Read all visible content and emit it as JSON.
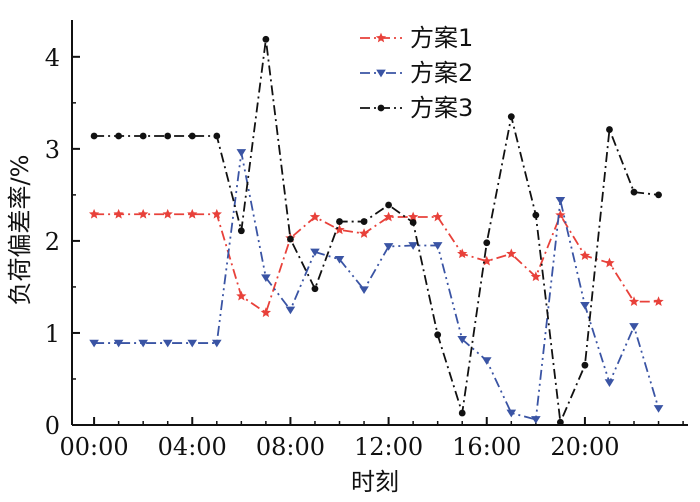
{
  "chart_data": {
    "type": "line",
    "x": [
      0,
      1,
      2,
      3,
      4,
      5,
      6,
      7,
      8,
      9,
      10,
      11,
      12,
      13,
      14,
      15,
      16,
      17,
      18,
      19,
      20,
      21,
      22,
      23
    ],
    "xticks": [
      "00:00",
      "04:00",
      "08:00",
      "12:00",
      "16:00",
      "20:00"
    ],
    "xlabel": "时刻",
    "ylabel": "负荷偏差率/%",
    "yticks": [
      "0",
      "1",
      "2",
      "3",
      "4"
    ],
    "ylim": [
      0,
      4.4
    ],
    "xlim": [
      -0.9,
      24.2
    ],
    "grid": false,
    "legend_position": "top-center",
    "series": [
      {
        "name": "方案1",
        "color": "#e8413a",
        "dash": "dash-dot",
        "marker": "star",
        "values": [
          2.29,
          2.29,
          2.29,
          2.29,
          2.29,
          2.29,
          1.4,
          1.22,
          2.03,
          2.26,
          2.12,
          2.08,
          2.26,
          2.26,
          2.26,
          1.86,
          1.78,
          1.86,
          1.61,
          2.28,
          1.84,
          1.76,
          1.34,
          1.34
        ]
      },
      {
        "name": "方案2",
        "color": "#3a54a4",
        "dash": "dash-dot-dot",
        "marker": "tri-down",
        "values": [
          0.89,
          0.89,
          0.89,
          0.89,
          0.89,
          0.89,
          2.96,
          1.6,
          1.25,
          1.88,
          1.8,
          1.47,
          1.94,
          1.95,
          1.95,
          0.93,
          0.7,
          0.13,
          0.06,
          2.44,
          1.3,
          0.46,
          1.07,
          0.18
        ]
      },
      {
        "name": "方案3",
        "color": "#111111",
        "dash": "dash-dot",
        "marker": "circle",
        "values": [
          3.14,
          3.14,
          3.14,
          3.14,
          3.14,
          3.14,
          2.11,
          4.19,
          2.02,
          1.48,
          2.21,
          2.21,
          2.39,
          2.2,
          0.98,
          0.13,
          1.98,
          3.35,
          2.28,
          0.03,
          0.65,
          3.21,
          2.53,
          2.5
        ]
      }
    ]
  }
}
